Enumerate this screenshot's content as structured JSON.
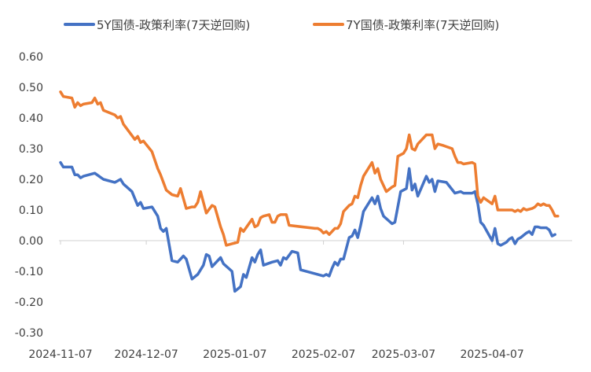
{
  "chart_data": {
    "type": "line",
    "title": "",
    "xlabel": "",
    "ylabel": "",
    "ylim": [
      -0.3,
      0.6
    ],
    "y_ticks": [
      "0.60",
      "0.50",
      "0.40",
      "0.30",
      "0.20",
      "0.10",
      "0.00",
      "-0.10",
      "-0.20",
      "-0.30"
    ],
    "x_ticks": [
      "2024-11-07",
      "2024-12-07",
      "2025-01-07",
      "2025-02-07",
      "2025-03-07",
      "2025-04-07"
    ],
    "x_range": [
      "2024-11-07",
      "2025-05-05"
    ],
    "grid": false,
    "legend_position": "top",
    "series": [
      {
        "name": "5Y国债-政策利率(7天逆回购)",
        "color": "#4472C4",
        "points": [
          [
            "2024-11-07",
            0.255
          ],
          [
            "2024-11-08",
            0.24
          ],
          [
            "2024-11-11",
            0.24
          ],
          [
            "2024-11-12",
            0.215
          ],
          [
            "2024-11-13",
            0.215
          ],
          [
            "2024-11-14",
            0.205
          ],
          [
            "2024-11-15",
            0.21
          ],
          [
            "2024-11-19",
            0.22
          ],
          [
            "2024-11-22",
            0.2
          ],
          [
            "2024-11-26",
            0.19
          ],
          [
            "2024-11-28",
            0.2
          ],
          [
            "2024-11-29",
            0.185
          ],
          [
            "2024-12-02",
            0.16
          ],
          [
            "2024-12-04",
            0.115
          ],
          [
            "2024-12-05",
            0.125
          ],
          [
            "2024-12-06",
            0.105
          ],
          [
            "2024-12-09",
            0.11
          ],
          [
            "2024-12-11",
            0.08
          ],
          [
            "2024-12-12",
            0.04
          ],
          [
            "2024-12-13",
            0.03
          ],
          [
            "2024-12-14",
            0.04
          ],
          [
            "2024-12-16",
            -0.065
          ],
          [
            "2024-12-18",
            -0.07
          ],
          [
            "2024-12-20",
            -0.05
          ],
          [
            "2024-12-21",
            -0.06
          ],
          [
            "2024-12-23",
            -0.125
          ],
          [
            "2024-12-25",
            -0.11
          ],
          [
            "2024-12-27",
            -0.08
          ],
          [
            "2024-12-28",
            -0.045
          ],
          [
            "2024-12-29",
            -0.05
          ],
          [
            "2024-12-30",
            -0.085
          ],
          [
            "2025-01-02",
            -0.055
          ],
          [
            "2025-01-03",
            -0.075
          ],
          [
            "2025-01-06",
            -0.1
          ],
          [
            "2025-01-07",
            -0.165
          ],
          [
            "2025-01-09",
            -0.15
          ],
          [
            "2025-01-10",
            -0.11
          ],
          [
            "2025-01-11",
            -0.12
          ],
          [
            "2025-01-13",
            -0.055
          ],
          [
            "2025-01-14",
            -0.07
          ],
          [
            "2025-01-15",
            -0.045
          ],
          [
            "2025-01-16",
            -0.03
          ],
          [
            "2025-01-17",
            -0.08
          ],
          [
            "2025-01-20",
            -0.07
          ],
          [
            "2025-01-22",
            -0.065
          ],
          [
            "2025-01-23",
            -0.08
          ],
          [
            "2025-01-24",
            -0.055
          ],
          [
            "2025-01-25",
            -0.06
          ],
          [
            "2025-01-27",
            -0.035
          ],
          [
            "2025-01-29",
            -0.04
          ],
          [
            "2025-01-30",
            -0.095
          ],
          [
            "2025-02-07",
            -0.115
          ],
          [
            "2025-02-08",
            -0.11
          ],
          [
            "2025-02-09",
            -0.115
          ],
          [
            "2025-02-10",
            -0.09
          ],
          [
            "2025-02-11",
            -0.07
          ],
          [
            "2025-02-12",
            -0.08
          ],
          [
            "2025-02-13",
            -0.06
          ],
          [
            "2025-02-14",
            -0.06
          ],
          [
            "2025-02-16",
            0.01
          ],
          [
            "2025-02-17",
            0.015
          ],
          [
            "2025-02-18",
            0.035
          ],
          [
            "2025-02-19",
            0.01
          ],
          [
            "2025-02-20",
            0.05
          ],
          [
            "2025-02-21",
            0.095
          ],
          [
            "2025-02-24",
            0.14
          ],
          [
            "2025-02-25",
            0.12
          ],
          [
            "2025-02-26",
            0.145
          ],
          [
            "2025-02-27",
            0.105
          ],
          [
            "2025-02-28",
            0.08
          ],
          [
            "2025-03-03",
            0.055
          ],
          [
            "2025-03-04",
            0.06
          ],
          [
            "2025-03-06",
            0.16
          ],
          [
            "2025-03-07",
            0.165
          ],
          [
            "2025-03-08",
            0.17
          ],
          [
            "2025-03-09",
            0.235
          ],
          [
            "2025-03-10",
            0.165
          ],
          [
            "2025-03-11",
            0.185
          ],
          [
            "2025-03-12",
            0.145
          ],
          [
            "2025-03-15",
            0.21
          ],
          [
            "2025-03-16",
            0.19
          ],
          [
            "2025-03-17",
            0.2
          ],
          [
            "2025-03-18",
            0.16
          ],
          [
            "2025-03-19",
            0.195
          ],
          [
            "2025-03-22",
            0.19
          ],
          [
            "2025-03-25",
            0.155
          ],
          [
            "2025-03-27",
            0.16
          ],
          [
            "2025-03-28",
            0.155
          ],
          [
            "2025-03-31",
            0.155
          ],
          [
            "2025-04-01",
            0.16
          ],
          [
            "2025-04-02",
            0.12
          ],
          [
            "2025-04-03",
            0.06
          ],
          [
            "2025-04-04",
            0.05
          ],
          [
            "2025-04-07",
            0.0
          ],
          [
            "2025-04-08",
            0.04
          ],
          [
            "2025-04-09",
            -0.01
          ],
          [
            "2025-04-10",
            -0.015
          ],
          [
            "2025-04-12",
            -0.005
          ],
          [
            "2025-04-13",
            0.005
          ],
          [
            "2025-04-14",
            0.01
          ],
          [
            "2025-04-15",
            -0.01
          ],
          [
            "2025-04-16",
            0.005
          ],
          [
            "2025-04-17",
            0.01
          ],
          [
            "2025-04-19",
            0.025
          ],
          [
            "2025-04-20",
            0.03
          ],
          [
            "2025-04-21",
            0.02
          ],
          [
            "2025-04-22",
            0.045
          ],
          [
            "2025-04-23",
            0.045
          ],
          [
            "2025-04-24",
            0.042
          ],
          [
            "2025-04-26",
            0.042
          ],
          [
            "2025-04-27",
            0.035
          ],
          [
            "2025-04-28",
            0.015
          ],
          [
            "2025-04-29",
            0.02
          ]
        ]
      },
      {
        "name": "7Y国债-政策利率(7天逆回购)",
        "color": "#ED7D31",
        "points": [
          [
            "2024-11-07",
            0.485
          ],
          [
            "2024-11-08",
            0.47
          ],
          [
            "2024-11-11",
            0.465
          ],
          [
            "2024-11-12",
            0.435
          ],
          [
            "2024-11-13",
            0.45
          ],
          [
            "2024-11-14",
            0.44
          ],
          [
            "2024-11-15",
            0.445
          ],
          [
            "2024-11-18",
            0.45
          ],
          [
            "2024-11-19",
            0.465
          ],
          [
            "2024-11-20",
            0.445
          ],
          [
            "2024-11-21",
            0.45
          ],
          [
            "2024-11-22",
            0.425
          ],
          [
            "2024-11-26",
            0.41
          ],
          [
            "2024-11-27",
            0.4
          ],
          [
            "2024-11-28",
            0.405
          ],
          [
            "2024-11-29",
            0.38
          ],
          [
            "2024-12-03",
            0.33
          ],
          [
            "2024-12-04",
            0.34
          ],
          [
            "2024-12-05",
            0.32
          ],
          [
            "2024-12-06",
            0.325
          ],
          [
            "2024-12-09",
            0.29
          ],
          [
            "2024-12-11",
            0.235
          ],
          [
            "2024-12-12",
            0.215
          ],
          [
            "2024-12-14",
            0.165
          ],
          [
            "2024-12-16",
            0.15
          ],
          [
            "2024-12-18",
            0.145
          ],
          [
            "2024-12-19",
            0.17
          ],
          [
            "2024-12-21",
            0.105
          ],
          [
            "2024-12-23",
            0.11
          ],
          [
            "2024-12-24",
            0.11
          ],
          [
            "2024-12-25",
            0.125
          ],
          [
            "2024-12-26",
            0.16
          ],
          [
            "2024-12-28",
            0.09
          ],
          [
            "2024-12-30",
            0.115
          ],
          [
            "2024-12-31",
            0.11
          ],
          [
            "2025-01-02",
            0.045
          ],
          [
            "2025-01-03",
            0.02
          ],
          [
            "2025-01-04",
            -0.015
          ],
          [
            "2025-01-06",
            -0.01
          ],
          [
            "2025-01-08",
            -0.005
          ],
          [
            "2025-01-09",
            0.04
          ],
          [
            "2025-01-10",
            0.03
          ],
          [
            "2025-01-13",
            0.07
          ],
          [
            "2025-01-14",
            0.045
          ],
          [
            "2025-01-15",
            0.05
          ],
          [
            "2025-01-16",
            0.075
          ],
          [
            "2025-01-17",
            0.08
          ],
          [
            "2025-01-19",
            0.085
          ],
          [
            "2025-01-20",
            0.06
          ],
          [
            "2025-01-21",
            0.06
          ],
          [
            "2025-01-22",
            0.08
          ],
          [
            "2025-01-23",
            0.085
          ],
          [
            "2025-01-24",
            0.085
          ],
          [
            "2025-01-25",
            0.085
          ],
          [
            "2025-01-26",
            0.05
          ],
          [
            "2025-02-04",
            0.04
          ],
          [
            "2025-02-05",
            0.04
          ],
          [
            "2025-02-06",
            0.035
          ],
          [
            "2025-02-07",
            0.025
          ],
          [
            "2025-02-08",
            0.03
          ],
          [
            "2025-02-09",
            0.02
          ],
          [
            "2025-02-10",
            0.03
          ],
          [
            "2025-02-11",
            0.04
          ],
          [
            "2025-02-12",
            0.04
          ],
          [
            "2025-02-13",
            0.055
          ],
          [
            "2025-02-14",
            0.095
          ],
          [
            "2025-02-16",
            0.115
          ],
          [
            "2025-02-17",
            0.12
          ],
          [
            "2025-02-18",
            0.145
          ],
          [
            "2025-02-19",
            0.14
          ],
          [
            "2025-02-20",
            0.18
          ],
          [
            "2025-02-21",
            0.21
          ],
          [
            "2025-02-24",
            0.255
          ],
          [
            "2025-02-25",
            0.22
          ],
          [
            "2025-02-26",
            0.235
          ],
          [
            "2025-02-27",
            0.2
          ],
          [
            "2025-03-01",
            0.16
          ],
          [
            "2025-03-03",
            0.175
          ],
          [
            "2025-03-04",
            0.18
          ],
          [
            "2025-03-05",
            0.275
          ],
          [
            "2025-03-06",
            0.28
          ],
          [
            "2025-03-07",
            0.285
          ],
          [
            "2025-03-08",
            0.3
          ],
          [
            "2025-03-09",
            0.345
          ],
          [
            "2025-03-10",
            0.3
          ],
          [
            "2025-03-11",
            0.295
          ],
          [
            "2025-03-12",
            0.315
          ],
          [
            "2025-03-13",
            0.325
          ],
          [
            "2025-03-15",
            0.345
          ],
          [
            "2025-03-17",
            0.345
          ],
          [
            "2025-03-18",
            0.3
          ],
          [
            "2025-03-19",
            0.315
          ],
          [
            "2025-03-21",
            0.31
          ],
          [
            "2025-03-24",
            0.3
          ],
          [
            "2025-03-25",
            0.275
          ],
          [
            "2025-03-26",
            0.255
          ],
          [
            "2025-03-27",
            0.255
          ],
          [
            "2025-03-28",
            0.25
          ],
          [
            "2025-03-31",
            0.255
          ],
          [
            "2025-04-01",
            0.25
          ],
          [
            "2025-04-02",
            0.145
          ],
          [
            "2025-04-03",
            0.125
          ],
          [
            "2025-04-04",
            0.14
          ],
          [
            "2025-04-07",
            0.12
          ],
          [
            "2025-04-08",
            0.145
          ],
          [
            "2025-04-09",
            0.1
          ],
          [
            "2025-04-10",
            0.1
          ],
          [
            "2025-04-12",
            0.1
          ],
          [
            "2025-04-14",
            0.1
          ],
          [
            "2025-04-15",
            0.095
          ],
          [
            "2025-04-16",
            0.1
          ],
          [
            "2025-04-17",
            0.095
          ],
          [
            "2025-04-18",
            0.105
          ],
          [
            "2025-04-19",
            0.1
          ],
          [
            "2025-04-21",
            0.105
          ],
          [
            "2025-04-22",
            0.11
          ],
          [
            "2025-04-23",
            0.12
          ],
          [
            "2025-04-24",
            0.115
          ],
          [
            "2025-04-25",
            0.12
          ],
          [
            "2025-04-26",
            0.115
          ],
          [
            "2025-04-27",
            0.115
          ],
          [
            "2025-04-28",
            0.1
          ],
          [
            "2025-04-29",
            0.08
          ],
          [
            "2025-04-30",
            0.08
          ]
        ]
      }
    ]
  }
}
